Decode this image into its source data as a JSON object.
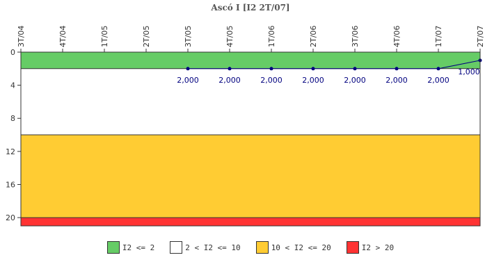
{
  "chart_data": {
    "type": "line",
    "title": "Ascó I [I2 2T/07]",
    "categories": [
      "3T/04",
      "4T/04",
      "1T/05",
      "2T/05",
      "3T/05",
      "4T/05",
      "1T/06",
      "2T/06",
      "3T/06",
      "4T/06",
      "1T/07",
      "2T/07"
    ],
    "series": [
      {
        "values": [
          null,
          null,
          null,
          null,
          2,
          2,
          2,
          2,
          2,
          2,
          2,
          1
        ],
        "labels": [
          null,
          null,
          null,
          null,
          "2,000",
          "2,000",
          "2,000",
          "2,000",
          "2,000",
          "2,000",
          "2,000",
          "1,000"
        ],
        "color": "#00007f"
      }
    ],
    "yticks": [
      0,
      4,
      8,
      12,
      16,
      20
    ],
    "ylim": [
      0,
      21
    ],
    "y_inverted": true,
    "x_axis_position": "top",
    "bands": [
      {
        "from": 0,
        "to": 2,
        "color": "#66cc66"
      },
      {
        "from": 2,
        "to": 10,
        "color": "#ffffff"
      },
      {
        "from": 10,
        "to": 20,
        "color": "#ffcc33"
      },
      {
        "from": 20,
        "to": 21,
        "color": "#ff3333"
      }
    ],
    "legend": [
      {
        "label": "I2 <= 2",
        "color": "#66cc66"
      },
      {
        "label": "2 < I2 <= 10",
        "color": "#ffffff"
      },
      {
        "label": "10 < I2 <= 20",
        "color": "#ffcc33"
      },
      {
        "label": "I2 > 20",
        "color": "#ff3333"
      }
    ],
    "legend_position": "bottom"
  }
}
